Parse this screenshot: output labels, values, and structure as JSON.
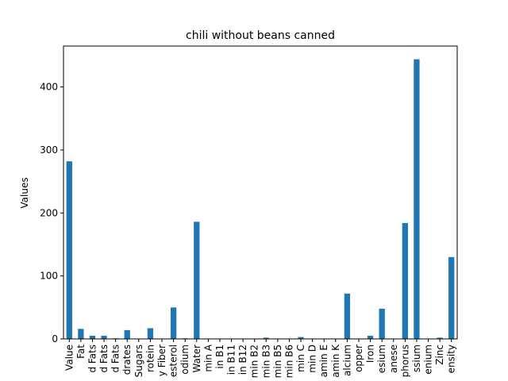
{
  "chart_data": {
    "type": "bar",
    "title": "chili without beans canned",
    "xlabel": "",
    "ylabel": "Values",
    "ylim": [
      0,
      465
    ],
    "yticks": [
      0,
      100,
      200,
      300,
      400
    ],
    "grid": false,
    "legend": "none",
    "bar_color": "#1f77b4",
    "categories": [
      "Value",
      "Fat",
      "d Fats",
      "d Fats",
      "d Fats",
      "drates",
      "Sugars",
      "rotein",
      "y Fiber",
      "esterol",
      "odium",
      "Water",
      "min A",
      "in B1",
      "in B11",
      "in B12",
      "min B2",
      "min B3",
      "min B5",
      "min B6",
      "min C",
      "min D",
      "amin E",
      "amin K",
      "alcium",
      "opper",
      "Iron",
      "esium",
      "anese",
      "phorus",
      "ssium",
      "enium",
      "Zinc",
      "ensity"
    ],
    "values": [
      282,
      16,
      5,
      5,
      1,
      14,
      0,
      17,
      0,
      50,
      1,
      186,
      0,
      0,
      0,
      0,
      0,
      2,
      0,
      0,
      3,
      0,
      0,
      0,
      72,
      0,
      5,
      48,
      0,
      184,
      444,
      0,
      2,
      130
    ]
  }
}
